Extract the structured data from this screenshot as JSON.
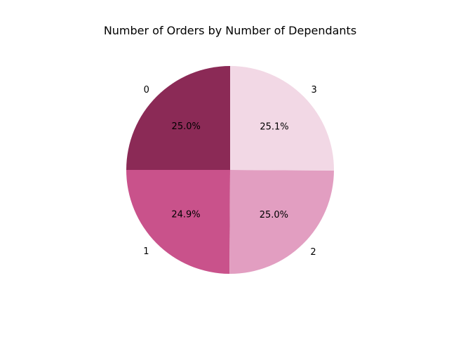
{
  "chart_data": {
    "type": "pie",
    "title": "Number of Orders by Number of Dependants",
    "categories": [
      "0",
      "1",
      "2",
      "3"
    ],
    "values": [
      25.0,
      24.9,
      25.0,
      25.1
    ],
    "percent_labels": [
      "25.0%",
      "24.9%",
      "25.0%",
      "25.1%"
    ],
    "colors": [
      "#8b2a56",
      "#c9528b",
      "#e29ec1",
      "#f2d8e5"
    ],
    "start_angle_deg": 90,
    "direction": "counterclockwise"
  }
}
